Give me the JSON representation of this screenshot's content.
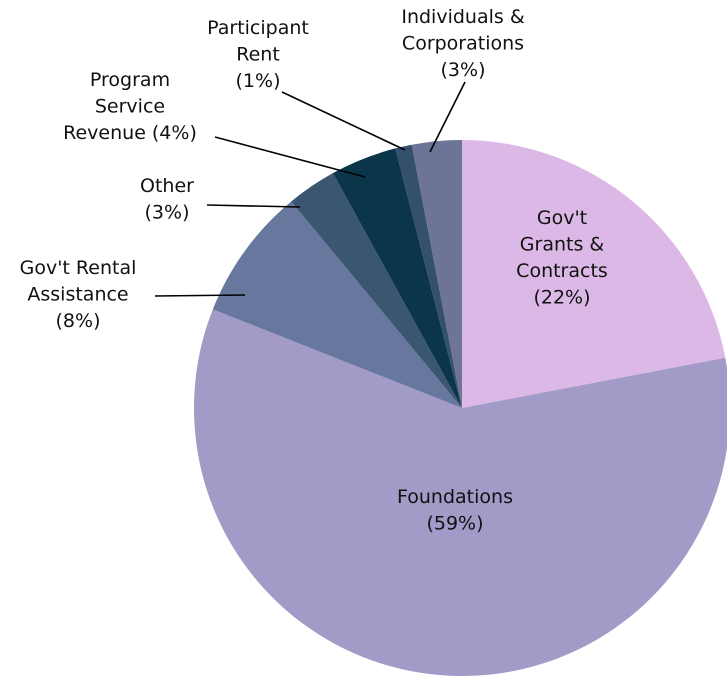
{
  "chart_data": {
    "type": "pie",
    "categories": [
      [
        "Gov't",
        "Grants &",
        "Contracts"
      ],
      [
        "Foundations"
      ],
      [
        "Gov't Rental",
        "Assistance"
      ],
      [
        "Other"
      ],
      [
        "Program",
        "Service",
        "Revenue"
      ],
      [
        "Participant",
        "Rent"
      ],
      [
        "Individuals &",
        "Corporations"
      ]
    ],
    "values": [
      22,
      59,
      8,
      3,
      4,
      1,
      3
    ],
    "value_labels": [
      "(22%)",
      "(59%)",
      "(8%)",
      "(3%)",
      "(4%)",
      "(1%)",
      "(3%)"
    ],
    "colors": [
      "#dcb8e6",
      "#a29ac7",
      "#67779e",
      "#3a5671",
      "#0b3549",
      "#35506b",
      "#6e7496"
    ]
  }
}
